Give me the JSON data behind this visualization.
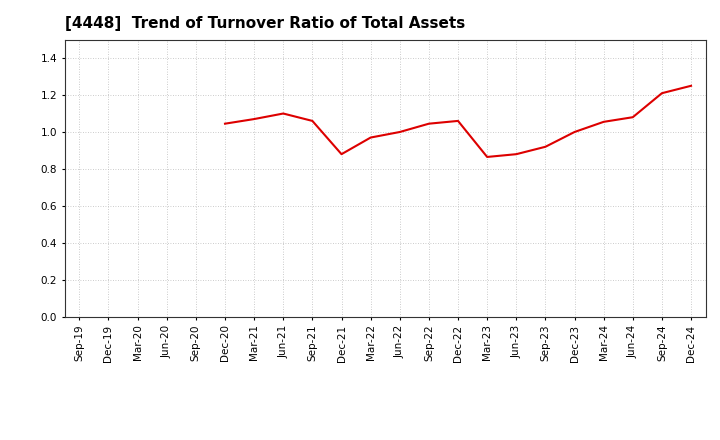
{
  "title": "[4448]  Trend of Turnover Ratio of Total Assets",
  "ylim": [
    0.0,
    1.5
  ],
  "yticks": [
    0.0,
    0.2,
    0.4,
    0.6,
    0.8,
    1.0,
    1.2,
    1.4
  ],
  "line_color": "#dd0000",
  "line_width": 1.5,
  "background_color": "#ffffff",
  "grid_color": "#bbbbbb",
  "title_fontsize": 11,
  "tick_fontsize": 7.5,
  "x_labels": [
    "Sep-19",
    "Dec-19",
    "Mar-20",
    "Jun-20",
    "Sep-20",
    "Dec-20",
    "Mar-21",
    "Jun-21",
    "Sep-21",
    "Dec-21",
    "Mar-22",
    "Jun-22",
    "Sep-22",
    "Dec-22",
    "Mar-23",
    "Jun-23",
    "Sep-23",
    "Dec-23",
    "Mar-24",
    "Jun-24",
    "Sep-24",
    "Dec-24"
  ],
  "values": [
    null,
    null,
    null,
    null,
    null,
    1.045,
    1.07,
    1.1,
    1.06,
    0.88,
    0.97,
    1.0,
    1.045,
    1.06,
    0.865,
    0.88,
    0.92,
    1.0,
    1.055,
    1.08,
    1.21,
    1.25
  ]
}
